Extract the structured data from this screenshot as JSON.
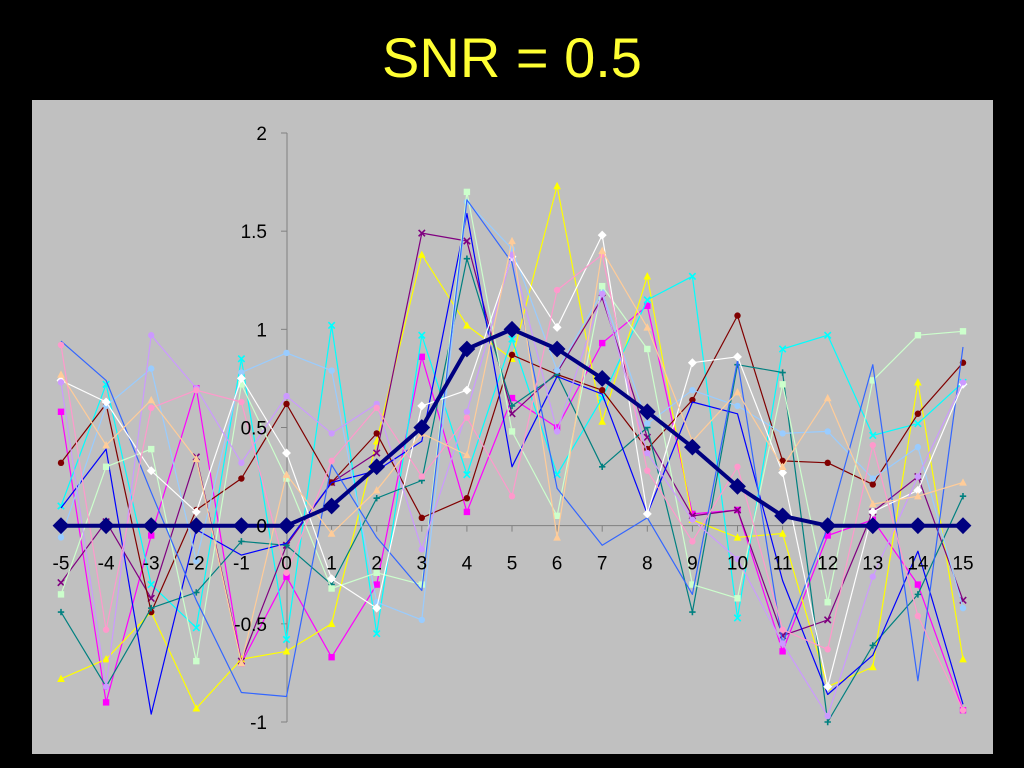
{
  "slide": {
    "title": "SNR = 0.5"
  },
  "colors": {
    "background": "#000000",
    "title": "#ffff33",
    "plot_area": "#c0c0c0",
    "axis": "#808080",
    "mean_series": "#000080"
  },
  "chart_data": {
    "type": "line",
    "title": "SNR = 0.5",
    "xlabel": "",
    "ylabel": "",
    "x": [
      -5,
      -4,
      -3,
      -2,
      -1,
      0,
      1,
      2,
      3,
      4,
      5,
      6,
      7,
      8,
      9,
      10,
      11,
      12,
      13,
      14,
      15
    ],
    "xlim": [
      -5,
      15
    ],
    "ylim": [
      -1,
      2
    ],
    "yticks": [
      -1,
      -0.5,
      0,
      0.5,
      1,
      1.5,
      2
    ],
    "grid": false,
    "legend": "none",
    "series": [
      {
        "color": "#000080",
        "marker": "diamond",
        "emphasis": true,
        "values": [
          0,
          0,
          0,
          0,
          0,
          0,
          0.1,
          0.3,
          0.5,
          0.9,
          1.0,
          0.9,
          0.75,
          0.58,
          0.4,
          0.2,
          0.05,
          0,
          0,
          0,
          0
        ]
      },
      {
        "color": "#ff00ff",
        "marker": "square",
        "values": [
          0.58,
          -0.9,
          -0.05,
          0.7,
          -0.7,
          -0.26,
          -0.67,
          -0.3,
          0.86,
          0.07,
          0.65,
          0.5,
          0.93,
          1.12,
          0.06,
          0.08,
          -0.64,
          -0.05,
          0.03,
          -0.3,
          -0.94
        ]
      },
      {
        "color": "#ffff00",
        "marker": "triangle",
        "values": [
          -0.78,
          -0.68,
          -0.44,
          -0.93,
          -0.68,
          -0.64,
          -0.5,
          0.43,
          1.38,
          1.02,
          0.85,
          1.73,
          0.53,
          1.27,
          0.03,
          -0.06,
          -0.04,
          -0.82,
          -0.72,
          0.73,
          -0.68
        ]
      },
      {
        "color": "#00ffff",
        "marker": "x",
        "values": [
          0.1,
          0.72,
          -0.3,
          -0.52,
          0.85,
          -0.58,
          1.02,
          -0.55,
          0.97,
          0.26,
          0.95,
          0.26,
          0.65,
          1.15,
          1.27,
          -0.47,
          0.9,
          0.97,
          0.46,
          0.52,
          0.73
        ]
      },
      {
        "color": "#800080",
        "marker": "x",
        "values": [
          -0.29,
          0.02,
          -0.37,
          0.35,
          -0.69,
          -0.1,
          0.22,
          0.37,
          1.49,
          1.45,
          0.57,
          0.78,
          1.16,
          0.45,
          0.05,
          0.08,
          -0.56,
          -0.48,
          0.07,
          0.25,
          -0.38
        ]
      },
      {
        "color": "#800000",
        "marker": "circle",
        "values": [
          0.32,
          0.62,
          -0.44,
          0.08,
          0.24,
          0.62,
          0.22,
          0.47,
          0.04,
          0.14,
          0.87,
          0.77,
          0.69,
          0.39,
          0.64,
          1.07,
          0.33,
          0.32,
          0.21,
          0.57,
          0.83
        ]
      },
      {
        "color": "#008080",
        "marker": "plus",
        "values": [
          -0.44,
          -0.82,
          -0.42,
          -0.34,
          -0.08,
          -0.1,
          -0.3,
          0.14,
          0.23,
          1.36,
          0.61,
          0.77,
          0.3,
          0.5,
          -0.44,
          0.82,
          0.78,
          -1.0,
          -0.61,
          -0.35,
          0.15
        ]
      },
      {
        "color": "#0000ff",
        "marker": "none",
        "values": [
          0.09,
          0.39,
          -0.96,
          -0.02,
          -0.15,
          -0.09,
          0.22,
          0.28,
          0.43,
          1.59,
          0.3,
          0.76,
          0.67,
          0.06,
          0.63,
          0.57,
          -0.28,
          -0.86,
          -0.66,
          -0.13,
          -0.91
        ]
      },
      {
        "color": "#99ccff",
        "marker": "circle",
        "values": [
          -0.06,
          0.61,
          0.8,
          -0.18,
          0.78,
          0.88,
          0.79,
          -0.39,
          -0.48,
          1.65,
          1.41,
          0.79,
          1.19,
          0.52,
          0.69,
          0.61,
          0.47,
          0.48,
          0.24,
          0.4,
          -0.42
        ]
      },
      {
        "color": "#ccffcc",
        "marker": "square",
        "values": [
          -0.35,
          0.3,
          0.39,
          -0.69,
          0.72,
          0.24,
          -0.32,
          -0.24,
          -0.3,
          1.7,
          0.48,
          0.05,
          1.22,
          0.9,
          -0.3,
          -0.37,
          0.72,
          -0.39,
          0.74,
          0.97,
          0.99
        ]
      },
      {
        "color": "#3366ff",
        "marker": "none",
        "values": [
          0.94,
          0.74,
          0.17,
          -0.38,
          -0.85,
          -0.87,
          0.31,
          -0.06,
          -0.33,
          1.66,
          1.34,
          0.19,
          -0.1,
          0.04,
          -0.35,
          0.84,
          -0.6,
          -0.01,
          0.82,
          -0.79,
          0.91
        ]
      },
      {
        "color": "#ffffff",
        "marker": "diamond",
        "values": [
          0.74,
          0.63,
          0.28,
          0.07,
          0.75,
          0.37,
          -0.27,
          -0.42,
          0.61,
          0.69,
          1.37,
          1.01,
          1.48,
          0.06,
          0.83,
          0.86,
          0.27,
          -0.82,
          0.07,
          0.18,
          0.72
        ]
      },
      {
        "color": "#cc99ff",
        "marker": "circle",
        "values": [
          0.73,
          -0.82,
          0.97,
          0.7,
          0.32,
          0.66,
          0.47,
          0.62,
          -0.12,
          0.58,
          1.38,
          0.48,
          1.18,
          0.37,
          0.03,
          -0.17,
          -0.6,
          -0.97,
          -0.26,
          0.25,
          0.73
        ]
      },
      {
        "color": "#ff99cc",
        "marker": "circle",
        "values": [
          0.92,
          -0.53,
          0.6,
          0.69,
          0.63,
          -0.24,
          0.33,
          0.6,
          0.25,
          0.55,
          0.15,
          1.2,
          1.38,
          0.28,
          -0.08,
          0.3,
          -0.53,
          -0.63,
          0.41,
          -0.46,
          -0.94
        ]
      },
      {
        "color": "#ffcc99",
        "marker": "triangle",
        "values": [
          0.77,
          0.41,
          0.64,
          0.34,
          -0.7,
          0.26,
          -0.04,
          0.18,
          0.47,
          0.36,
          1.45,
          -0.06,
          1.4,
          1.01,
          0.43,
          0.68,
          0.3,
          0.65,
          0.11,
          0.15,
          0.22
        ]
      }
    ]
  }
}
